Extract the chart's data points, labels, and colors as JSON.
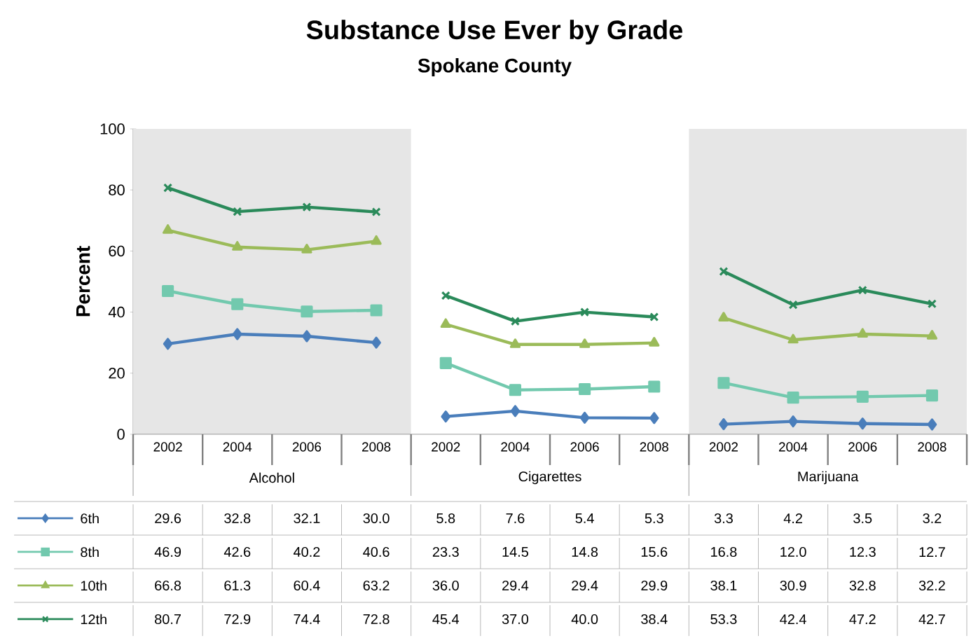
{
  "chart_data": {
    "type": "line",
    "title": "Substance Use Ever by Grade",
    "subtitle": "Spokane County",
    "ylabel": "Percent",
    "categories": [
      "2002",
      "2004",
      "2006",
      "2008",
      "2002",
      "2004",
      "2006",
      "2008",
      "2002",
      "2004",
      "2006",
      "2008"
    ],
    "ylim": [
      0,
      100
    ],
    "yticks": [
      0,
      20,
      40,
      60,
      80,
      100
    ],
    "annotations": [
      "Alcohol",
      "Cigarettes",
      "Marijuana"
    ],
    "series": [
      {
        "name": "6th",
        "color": "#4a7ebb",
        "marker": "diamond",
        "values": [
          29.6,
          32.8,
          32.1,
          30.0,
          5.8,
          7.6,
          5.4,
          5.3,
          3.3,
          4.2,
          3.5,
          3.2
        ],
        "value_labels": [
          "29.6",
          "32.8",
          "32.1",
          "30.0",
          "5.8",
          "7.6",
          "5.4",
          "5.3",
          "3.3",
          "4.2",
          "3.5",
          "3.2"
        ]
      },
      {
        "name": "8th",
        "color": "#72c9ae",
        "marker": "square",
        "values": [
          46.9,
          42.6,
          40.2,
          40.6,
          23.3,
          14.5,
          14.8,
          15.6,
          16.8,
          12.0,
          12.3,
          12.7
        ],
        "value_labels": [
          "46.9",
          "42.6",
          "40.2",
          "40.6",
          "23.3",
          "14.5",
          "14.8",
          "15.6",
          "16.8",
          "12.0",
          "12.3",
          "12.7"
        ]
      },
      {
        "name": "10th",
        "color": "#9bbb59",
        "marker": "triangle",
        "values": [
          66.8,
          61.3,
          60.4,
          63.2,
          36.0,
          29.4,
          29.4,
          29.9,
          38.1,
          30.9,
          32.8,
          32.2
        ],
        "value_labels": [
          "66.8",
          "61.3",
          "60.4",
          "63.2",
          "36.0",
          "29.4",
          "29.4",
          "29.9",
          "38.1",
          "30.9",
          "32.8",
          "32.2"
        ]
      },
      {
        "name": "12th",
        "color": "#2a8a5a",
        "marker": "cross",
        "values": [
          80.7,
          72.9,
          74.4,
          72.8,
          45.4,
          37.0,
          40.0,
          38.4,
          53.3,
          42.4,
          47.2,
          42.7
        ],
        "value_labels": [
          "80.7",
          "72.9",
          "74.4",
          "72.8",
          "45.4",
          "37.0",
          "40.0",
          "38.4",
          "53.3",
          "42.4",
          "47.2",
          "42.7"
        ]
      }
    ],
    "legend": "bottom"
  }
}
